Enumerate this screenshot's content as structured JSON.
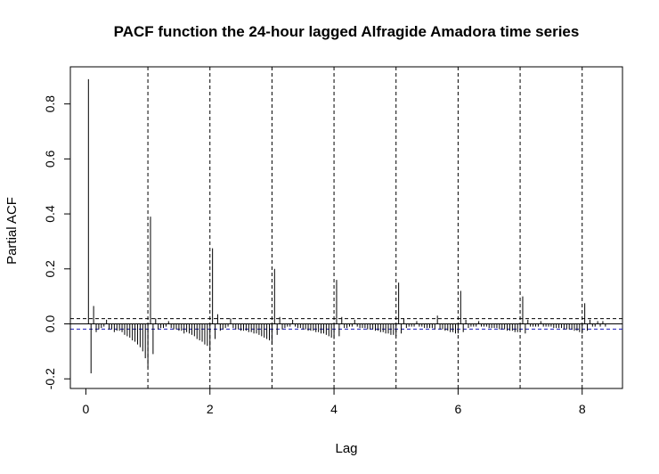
{
  "chart_data": {
    "type": "bar",
    "title": "PACF function the 24-hour lagged Alfragide Amadora time series",
    "xlabel": "Lag",
    "ylabel": "Partial ACF",
    "xlim": [
      -0.25,
      8.65
    ],
    "ylim": [
      -0.235,
      0.935
    ],
    "xticks": [
      0,
      2,
      4,
      6,
      8
    ],
    "yticks": [
      -0.2,
      0.0,
      0.2,
      0.4,
      0.6,
      0.8
    ],
    "series": [
      {
        "lag_step": 0.041667,
        "first_lag": 0.041667,
        "values": [
          0.89,
          -0.18,
          0.065,
          -0.03,
          -0.02,
          -0.015,
          -0.01,
          0.015,
          -0.02,
          -0.02,
          -0.03,
          -0.025,
          -0.025,
          -0.03,
          -0.04,
          -0.045,
          -0.05,
          -0.06,
          -0.065,
          -0.075,
          -0.085,
          -0.1,
          -0.125,
          -0.16,
          0.39,
          -0.11,
          0.02,
          -0.02,
          -0.015,
          -0.015,
          -0.01,
          0.01,
          -0.015,
          -0.02,
          -0.02,
          -0.025,
          -0.025,
          -0.035,
          -0.03,
          -0.035,
          -0.04,
          -0.045,
          -0.055,
          -0.06,
          -0.065,
          -0.075,
          -0.08,
          -0.095,
          0.275,
          -0.055,
          0.035,
          -0.025,
          -0.02,
          -0.015,
          -0.01,
          0.02,
          -0.015,
          -0.02,
          -0.02,
          -0.025,
          -0.025,
          -0.025,
          -0.03,
          -0.03,
          -0.035,
          -0.035,
          -0.04,
          -0.045,
          -0.05,
          -0.055,
          -0.06,
          -0.075,
          0.2,
          -0.04,
          0.025,
          -0.02,
          -0.015,
          -0.01,
          -0.01,
          0.015,
          -0.01,
          -0.015,
          -0.015,
          -0.02,
          -0.02,
          -0.025,
          -0.025,
          -0.025,
          -0.03,
          -0.03,
          -0.035,
          -0.035,
          -0.04,
          -0.045,
          -0.05,
          -0.055,
          0.16,
          -0.045,
          0.025,
          -0.015,
          -0.015,
          -0.01,
          -0.01,
          0.015,
          -0.01,
          -0.015,
          -0.015,
          -0.015,
          -0.02,
          -0.02,
          -0.02,
          -0.025,
          -0.025,
          -0.03,
          -0.03,
          -0.035,
          -0.035,
          -0.04,
          -0.04,
          -0.045,
          0.15,
          -0.035,
          0.02,
          -0.015,
          -0.01,
          -0.01,
          -0.01,
          0.01,
          -0.01,
          -0.01,
          -0.015,
          -0.015,
          -0.015,
          -0.015,
          -0.02,
          0.03,
          -0.02,
          -0.02,
          -0.025,
          -0.025,
          -0.03,
          -0.03,
          -0.035,
          -0.035,
          0.12,
          -0.03,
          0.015,
          -0.015,
          -0.01,
          -0.01,
          -0.01,
          0.01,
          -0.01,
          -0.01,
          -0.01,
          -0.015,
          -0.015,
          -0.015,
          -0.015,
          -0.02,
          -0.02,
          -0.02,
          -0.025,
          -0.025,
          -0.025,
          -0.03,
          -0.03,
          -0.03,
          0.1,
          -0.035,
          0.015,
          -0.01,
          -0.01,
          -0.01,
          -0.01,
          0.01,
          -0.01,
          -0.01,
          -0.01,
          -0.01,
          -0.015,
          -0.015,
          -0.015,
          -0.015,
          -0.02,
          -0.02,
          -0.02,
          -0.02,
          -0.025,
          -0.025,
          -0.03,
          -0.035,
          0.075,
          -0.025,
          0.015,
          -0.01,
          -0.01,
          0.01,
          -0.01,
          0.01,
          -0.01
        ]
      }
    ],
    "confidence_band": [
      0.019,
      -0.019
    ],
    "vertical_reference_lines": [
      1,
      2,
      3,
      4,
      5,
      6,
      7,
      8
    ],
    "grid": false,
    "colors": {
      "bars": "#000000",
      "ci": "#1a1ab8",
      "ci_upper": "#000000",
      "zero_line": "#000000"
    }
  }
}
